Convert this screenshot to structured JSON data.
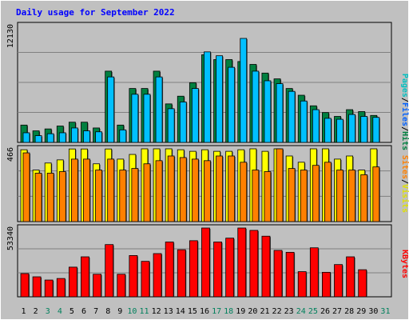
{
  "chart_data": {
    "type": "bar",
    "title": "Daily usage for September 2022",
    "x": [
      1,
      2,
      3,
      4,
      5,
      6,
      7,
      8,
      9,
      10,
      11,
      12,
      13,
      14,
      15,
      16,
      17,
      18,
      19,
      20,
      21,
      22,
      23,
      24,
      25,
      26,
      27,
      28,
      29,
      30,
      31
    ],
    "weekend_days": [
      3,
      4,
      10,
      11,
      17,
      18,
      24,
      25,
      31
    ],
    "panels": [
      {
        "id": "hits",
        "ymax_label": "12130",
        "ymax": 12130,
        "series": [
          {
            "name": "Hits",
            "color": "#008040",
            "values": [
              1800,
              1200,
              1400,
              1700,
              2100,
              2100,
              1500,
              7400,
              1800,
              5600,
              5600,
              7400,
              4000,
              4800,
              6200,
              9100,
              8600,
              8600,
              8400,
              8100,
              7200,
              6600,
              5600,
              4900,
              3800,
              3100,
              2700,
              3400,
              3200,
              2800,
              0
            ]
          },
          {
            "name": "Files",
            "color": "#00C0FF",
            "values": [
              1000,
              700,
              900,
              1000,
              1500,
              1200,
              1100,
              6800,
              1300,
              5000,
              5000,
              6800,
              3500,
              4200,
              5600,
              9400,
              9000,
              7800,
              10800,
              7400,
              6400,
              6100,
              5300,
              4300,
              3400,
              2500,
              2400,
              2900,
              2700,
              2600,
              0
            ]
          },
          {
            "name": "Pages",
            "color": "#00FFFF",
            "values": [
              0,
              0,
              0,
              0,
              0,
              0,
              0,
              0,
              0,
              0,
              0,
              0,
              0,
              0,
              0,
              0,
              0,
              0,
              0,
              0,
              0,
              0,
              0,
              0,
              0,
              0,
              0,
              0,
              0,
              0,
              0
            ]
          }
        ]
      },
      {
        "id": "visits",
        "ymax_label": "466",
        "ymax": 466,
        "series": [
          {
            "name": "Visits",
            "color": "#FFFF00",
            "values": [
              460,
              330,
              375,
              395,
              465,
              465,
              370,
              465,
              400,
              430,
              470,
              560,
              580,
              460,
              450,
              460,
              450,
              450,
              460,
              480,
              450,
              490,
              420,
              380,
              500,
              530,
              400,
              420,
              330,
              490,
              0
            ]
          },
          {
            "name": "Sites",
            "color": "#FF8000",
            "values": [
              440,
              310,
              310,
              320,
              400,
              400,
              330,
              400,
              330,
              340,
              370,
              390,
              420,
              410,
              400,
              390,
              420,
              420,
              380,
              330,
              320,
              620,
              340,
              330,
              360,
              380,
              330,
              330,
              300,
              350,
              0
            ]
          }
        ]
      },
      {
        "id": "kbytes",
        "ymax_label": "53340",
        "ymax": 53340,
        "series": [
          {
            "name": "KBytes",
            "color": "#FF0000",
            "values": [
              18000,
              15500,
              13000,
              14200,
              23000,
              31000,
              17500,
              40500,
              17500,
              32000,
              27500,
              33500,
              42500,
              36500,
              43500,
              56800,
              42500,
              45500,
              54500,
              51500,
              47000,
              36000,
              34500,
              19500,
              38000,
              19000,
              25000,
              31000,
              21000,
              0,
              0
            ]
          }
        ]
      }
    ],
    "ylabels": [
      "Pages",
      "/",
      "Files",
      "/",
      "Hits",
      "Sites",
      "/",
      "Visits",
      "KBytes"
    ],
    "colors": {
      "background": "#C0C0C0",
      "frame": "#808080",
      "title": "#0000FF",
      "weekday_label": "#000000",
      "weekend_label": "#00805C"
    }
  }
}
